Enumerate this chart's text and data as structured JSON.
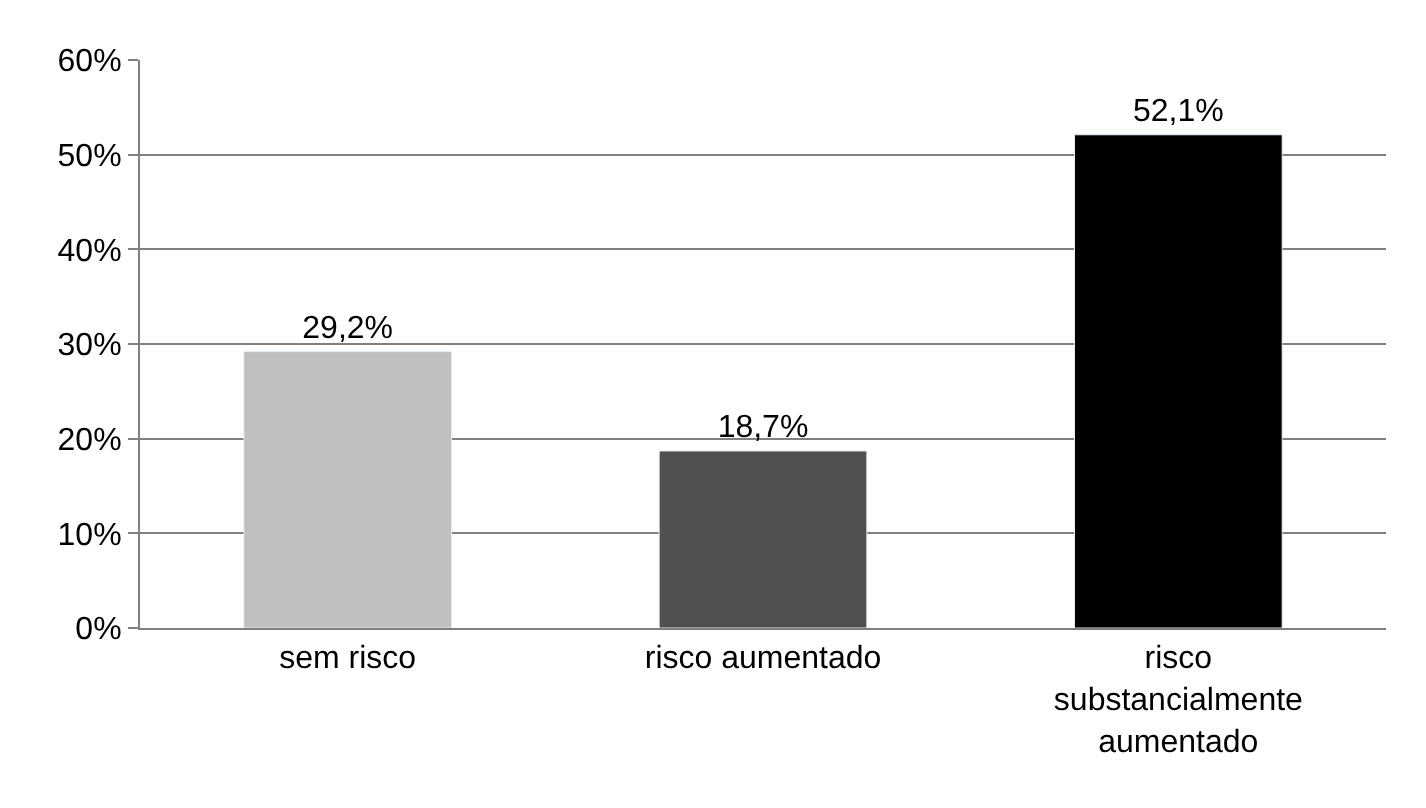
{
  "chart_data": {
    "type": "bar",
    "categories": [
      "sem risco",
      "risco aumentado",
      "risco substancialmente aumentado"
    ],
    "values": [
      29.2,
      18.7,
      52.1
    ],
    "colors": [
      "#c0c0c0",
      "#505050",
      "#000000"
    ],
    "value_labels": [
      "29,2%",
      "18,7%",
      "52,1%"
    ],
    "ylim": [
      0,
      60
    ],
    "yticks": [
      {
        "value": 0,
        "label": "0%"
      },
      {
        "value": 10,
        "label": "10%"
      },
      {
        "value": 20,
        "label": "20%"
      },
      {
        "value": 30,
        "label": "30%"
      },
      {
        "value": 40,
        "label": "40%"
      },
      {
        "value": 50,
        "label": "50%"
      },
      {
        "value": 60,
        "label": "60%"
      }
    ],
    "grid": "y"
  }
}
